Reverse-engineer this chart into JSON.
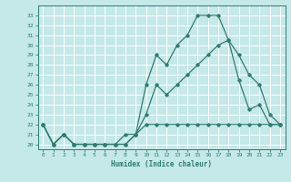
{
  "xlabel": "Humidex (Indice chaleur)",
  "xlim": [
    -0.5,
    23.5
  ],
  "ylim": [
    19.5,
    34.0
  ],
  "yticks": [
    20,
    21,
    22,
    23,
    24,
    25,
    26,
    27,
    28,
    29,
    30,
    31,
    32,
    33
  ],
  "xticks": [
    0,
    1,
    2,
    3,
    4,
    5,
    6,
    7,
    8,
    9,
    10,
    11,
    12,
    13,
    14,
    15,
    16,
    17,
    18,
    19,
    20,
    21,
    22,
    23
  ],
  "bg_color": "#c5e8e8",
  "grid_color": "#ffffff",
  "line_color": "#2e7d72",
  "line1_x": [
    0,
    1,
    2,
    3,
    4,
    5,
    6,
    7,
    8,
    9,
    10,
    11,
    12,
    13,
    14,
    15,
    16,
    17,
    18,
    19,
    20,
    21,
    22,
    23
  ],
  "line1_y": [
    22,
    20,
    21,
    20,
    20,
    20,
    20,
    20,
    20,
    21,
    26,
    29,
    28,
    30,
    31,
    33,
    33,
    33,
    30.5,
    26.5,
    23.5,
    24,
    22,
    22
  ],
  "line2_x": [
    0,
    1,
    2,
    3,
    4,
    5,
    6,
    7,
    8,
    9,
    10,
    11,
    12,
    13,
    14,
    15,
    16,
    17,
    18,
    19,
    20,
    21,
    22,
    23
  ],
  "line2_y": [
    22,
    20,
    21,
    20,
    20,
    20,
    20,
    20,
    20,
    21,
    23,
    26,
    25,
    26,
    27,
    28,
    29,
    30,
    30.5,
    29,
    27,
    26,
    23,
    22
  ],
  "line3_x": [
    0,
    1,
    2,
    3,
    4,
    5,
    6,
    7,
    8,
    9,
    10,
    11,
    12,
    13,
    14,
    15,
    16,
    17,
    18,
    19,
    20,
    21,
    22,
    23
  ],
  "line3_y": [
    22,
    20,
    21,
    20,
    20,
    20,
    20,
    20,
    21,
    21,
    22,
    22,
    22,
    22,
    22,
    22,
    22,
    22,
    22,
    22,
    22,
    22,
    22,
    22
  ]
}
